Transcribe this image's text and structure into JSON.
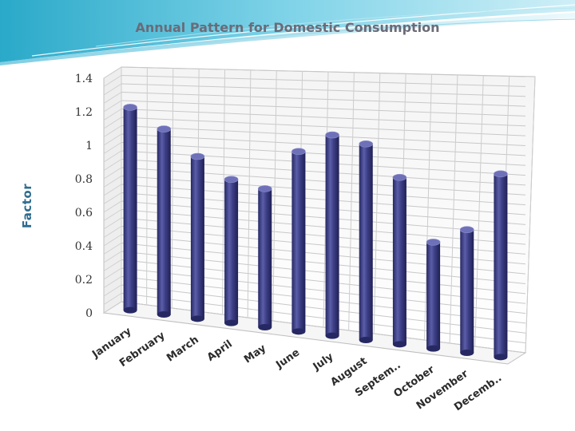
{
  "chart_data": {
    "type": "bar",
    "title": "Annual Pattern for Domestic Consumption",
    "ylabel": "Factor",
    "xlabel": "",
    "categories": [
      "January",
      "February",
      "March",
      "April",
      "May",
      "June",
      "July",
      "August",
      "Septem..",
      "October",
      "November",
      "Decemb.."
    ],
    "values": [
      1.21,
      1.09,
      0.94,
      0.82,
      0.78,
      1.0,
      1.1,
      1.06,
      0.89,
      0.56,
      0.64,
      0.94
    ],
    "ylim": [
      0,
      1.4
    ],
    "yticks": [
      "0",
      "0.2",
      "0.4",
      "0.6",
      "0.8",
      "1",
      "1.2",
      "1.4"
    ],
    "grid": true,
    "legend": "none",
    "bar_color": "#3d3f86",
    "style": "3d-cylinder"
  }
}
